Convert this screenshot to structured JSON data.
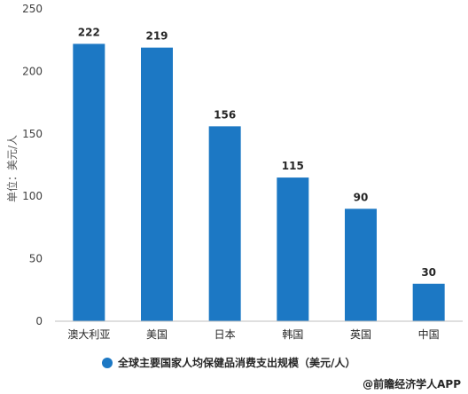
{
  "chart_data": {
    "type": "bar",
    "categories": [
      "澳大利亚",
      "美国",
      "日本",
      "韩国",
      "英国",
      "中国"
    ],
    "series": [
      {
        "name": "全球主要国家人均保健品消费支出规模（美元/人）",
        "values": [
          222,
          219,
          156,
          115,
          90,
          30
        ]
      }
    ],
    "ylabel": "单位：美元/人",
    "ylim": [
      0,
      250
    ],
    "yticks": [
      0,
      50,
      100,
      150,
      200,
      250
    ],
    "grid": false,
    "legend": "bottom",
    "bar_color": "#1c78c4"
  },
  "legend_label": "全球主要国家人均保健品消费支出规模（美元/人）",
  "source_label": "@前瞻经济学人APP"
}
